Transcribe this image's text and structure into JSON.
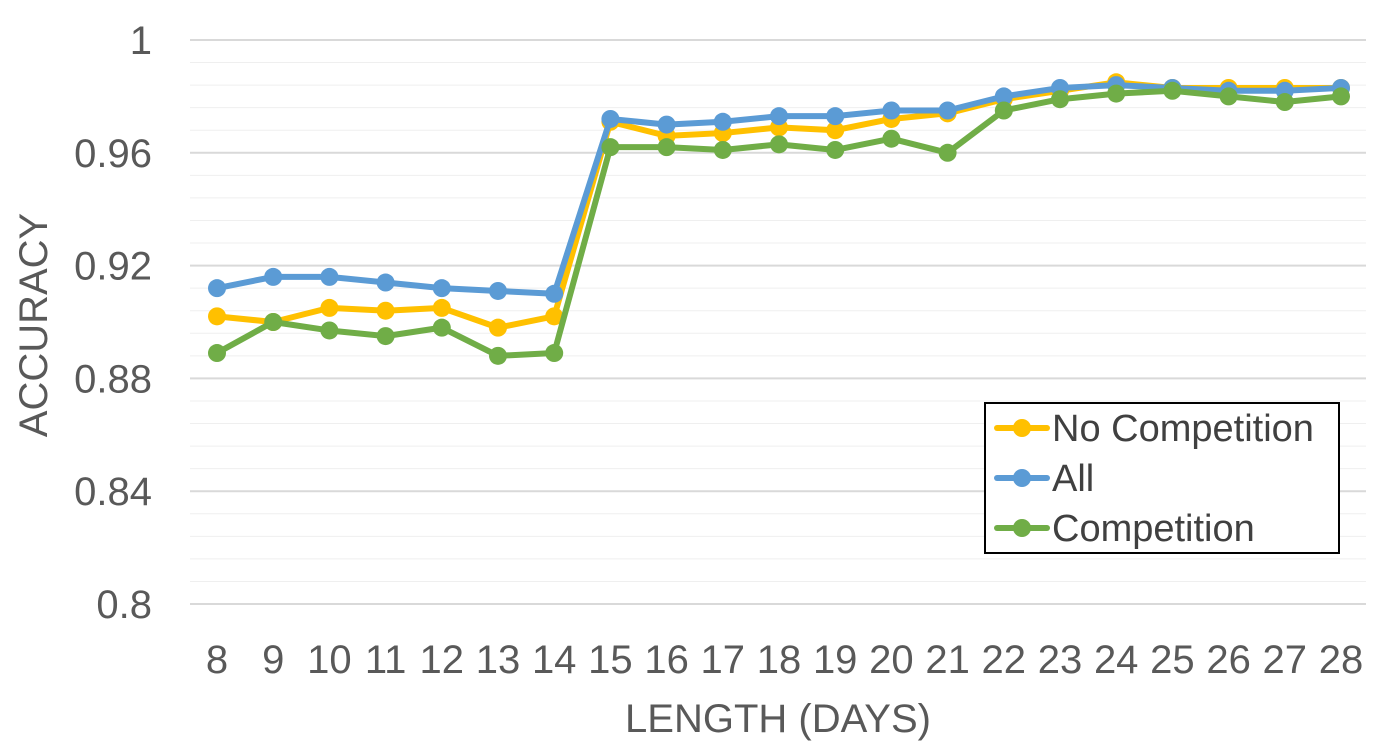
{
  "chart_data": {
    "type": "line",
    "title": "",
    "xlabel": "LENGTH (DAYS)",
    "ylabel": "ACCURACY",
    "x": [
      8,
      9,
      10,
      11,
      12,
      13,
      14,
      15,
      16,
      17,
      18,
      19,
      20,
      21,
      22,
      23,
      24,
      25,
      26,
      27,
      28
    ],
    "ylim": [
      0.8,
      1.0
    ],
    "yticks": [
      "0.8",
      "0.84",
      "0.88",
      "0.92",
      "0.96",
      "1"
    ],
    "grid": "horizontal major and minor",
    "legend": "bottom-right",
    "series": [
      {
        "name": "No Competition",
        "color": "#FFC000",
        "values": [
          0.902,
          0.9,
          0.905,
          0.904,
          0.905,
          0.898,
          0.902,
          0.971,
          0.966,
          0.967,
          0.969,
          0.968,
          0.972,
          0.974,
          0.979,
          0.982,
          0.985,
          0.983,
          0.983,
          0.983,
          0.983
        ]
      },
      {
        "name": "All",
        "color": "#5B9BD5",
        "values": [
          0.912,
          0.916,
          0.916,
          0.914,
          0.912,
          0.911,
          0.91,
          0.972,
          0.97,
          0.971,
          0.973,
          0.973,
          0.975,
          0.975,
          0.98,
          0.983,
          0.984,
          0.983,
          0.982,
          0.982,
          0.983
        ]
      },
      {
        "name": "Competition",
        "color": "#70AD47",
        "values": [
          0.889,
          0.9,
          0.897,
          0.895,
          0.898,
          0.888,
          0.889,
          0.962,
          0.962,
          0.961,
          0.963,
          0.961,
          0.965,
          0.96,
          0.975,
          0.979,
          0.981,
          0.982,
          0.98,
          0.978,
          0.98
        ]
      }
    ]
  }
}
